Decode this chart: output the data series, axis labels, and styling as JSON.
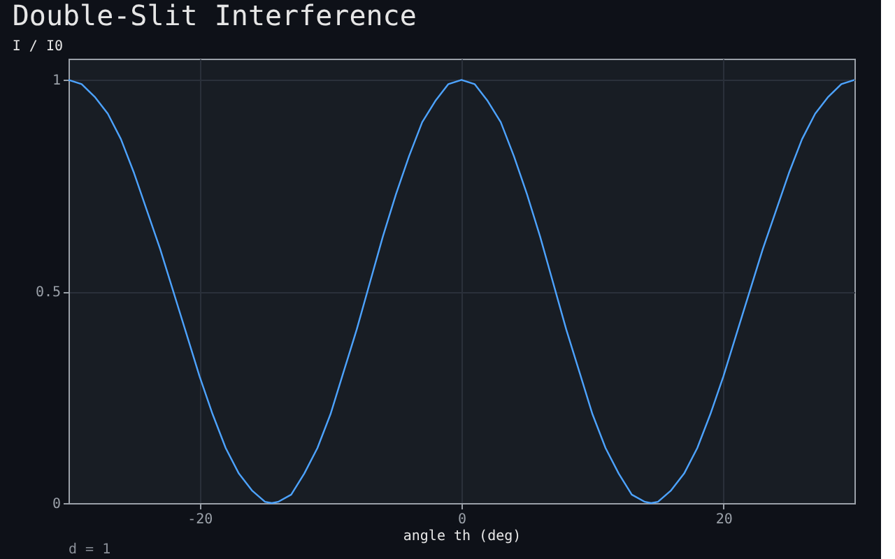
{
  "chart_data": {
    "type": "line",
    "title": "Double-Slit Interference",
    "xlabel": "angle th (deg)",
    "ylabel": "I / I0",
    "x": [
      -30,
      -29,
      -28,
      -27,
      -26,
      -25,
      -24,
      -23,
      -22,
      -21,
      -20,
      -19,
      -18,
      -17,
      -16,
      -15,
      -14.48,
      -14,
      -13,
      -12,
      -11,
      -10,
      -9,
      -8,
      -7,
      -6,
      -5,
      -4,
      -3,
      -2,
      -1,
      0,
      1,
      2,
      3,
      4,
      5,
      6,
      7,
      8,
      9,
      10,
      11,
      12,
      13,
      14,
      14.48,
      15,
      16,
      17,
      18,
      19,
      20,
      21,
      22,
      23,
      24,
      25,
      26,
      27,
      28,
      29,
      30
    ],
    "series": [
      {
        "color": "#4da3ff",
        "values": [
          1,
          0.99,
          0.96,
          0.92,
          0.86,
          0.78,
          0.69,
          0.6,
          0.5,
          0.4,
          0.3,
          0.21,
          0.13,
          0.07,
          0.03,
          0.003,
          0,
          0.003,
          0.02,
          0.07,
          0.13,
          0.21,
          0.31,
          0.41,
          0.52,
          0.63,
          0.73,
          0.82,
          0.9,
          0.95,
          0.99,
          1,
          0.99,
          0.95,
          0.9,
          0.82,
          0.73,
          0.63,
          0.52,
          0.41,
          0.31,
          0.21,
          0.13,
          0.07,
          0.02,
          0.003,
          0,
          0.003,
          0.03,
          0.07,
          0.13,
          0.21,
          0.3,
          0.4,
          0.5,
          0.6,
          0.69,
          0.78,
          0.86,
          0.92,
          0.96,
          0.99,
          1
        ]
      }
    ],
    "xlim": [
      -30,
      30
    ],
    "ylim": [
      0,
      1.05
    ],
    "xticks": [
      -20,
      0,
      20
    ],
    "yticks": [
      0,
      0.5,
      1
    ],
    "grid": true,
    "marker": "none",
    "line_style": "solid",
    "annotations": [
      "d = 1"
    ]
  }
}
